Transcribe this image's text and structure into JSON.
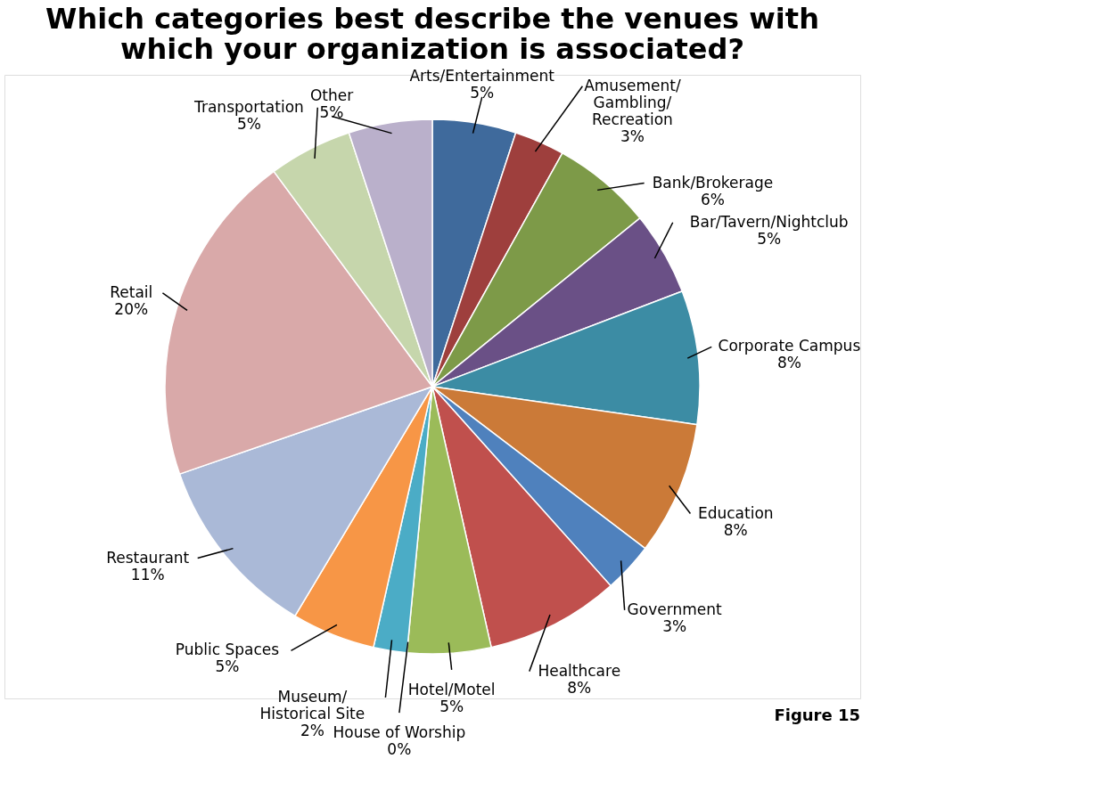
{
  "chart_data": {
    "type": "pie",
    "title": [
      "Which categories best describe the venues with",
      "which your organization is associated?"
    ],
    "categories": [
      "Arts/Entertainment",
      "Amusement/Gambling/Recreation",
      "Bank/Brokerage",
      "Bar/Tavern/Nightclub",
      "Corporate Campus",
      "Education",
      "Government",
      "Healthcare",
      "Hotel/Motel",
      "House of Worship",
      "Museum/Historical Site",
      "Public Spaces",
      "Restaurant",
      "Retail",
      "Transportation",
      "Other"
    ],
    "values": [
      5,
      3,
      6,
      5,
      8,
      8,
      3,
      8,
      5,
      0,
      2,
      5,
      11,
      20,
      5,
      5
    ],
    "value_labels": [
      "5%",
      "3%",
      "6%",
      "5%",
      "8%",
      "8%",
      "3%",
      "8%",
      "5%",
      "0%",
      "2%",
      "5%",
      "11%",
      "20%",
      "5%",
      "5%"
    ],
    "colors": [
      "#3f6a9c",
      "#9e3f3d",
      "#7d9a48",
      "#6a5086",
      "#3c8ca4",
      "#cb7a38",
      "#4f81bd",
      "#c0504d",
      "#9bbb59",
      "#8064a2",
      "#4bacc6",
      "#f79646",
      "#aab9d7",
      "#d9a9a9",
      "#c6d6ac",
      "#bab0cb"
    ],
    "annotations": [
      "Figure 15"
    ],
    "legend": false
  }
}
